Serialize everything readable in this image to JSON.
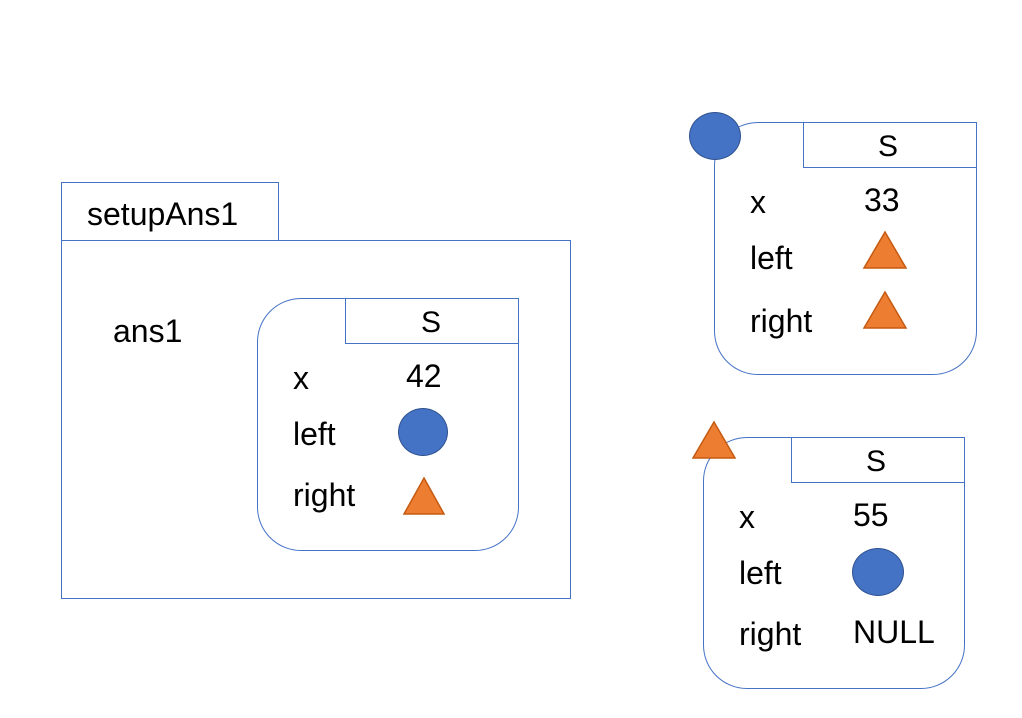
{
  "frame": {
    "name": "setupAns1",
    "variable": "ans1"
  },
  "structs": [
    {
      "type": "S",
      "fields": [
        {
          "name": "x",
          "value": "42"
        },
        {
          "name": "left",
          "value": "blue-circle-pointer-icon"
        },
        {
          "name": "right",
          "value": "orange-triangle-pointer-icon"
        }
      ]
    },
    {
      "type": "S",
      "marker": "blue-circle-marker-icon",
      "fields": [
        {
          "name": "x",
          "value": "33"
        },
        {
          "name": "left",
          "value": "orange-triangle-pointer-icon"
        },
        {
          "name": "right",
          "value": "orange-triangle-pointer-icon"
        }
      ]
    },
    {
      "type": "S",
      "marker": "orange-triangle-marker-icon",
      "fields": [
        {
          "name": "x",
          "value": "55"
        },
        {
          "name": "left",
          "value": "blue-circle-pointer-icon"
        },
        {
          "name": "right",
          "value": "NULL"
        }
      ]
    }
  ],
  "colors": {
    "outline": "#4472C4",
    "circle_fill": "#4472C4",
    "triangle_fill": "#ED7D31"
  }
}
